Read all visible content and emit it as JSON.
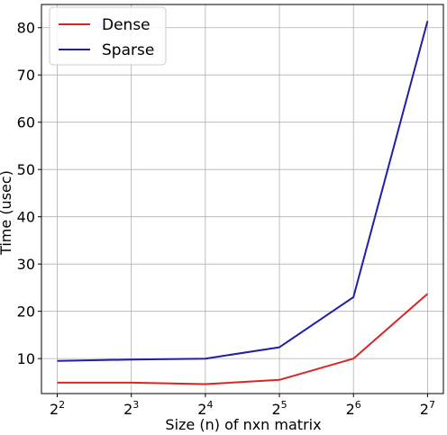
{
  "chart_data": {
    "type": "line",
    "xlabel": "Size (n) of nxn matrix",
    "ylabel": "Time (usec)",
    "x_scale": "log2",
    "x": [
      4,
      8,
      16,
      32,
      64,
      128
    ],
    "x_tick_bases": [
      "2",
      "2",
      "2",
      "2",
      "2",
      "2"
    ],
    "x_tick_exponents": [
      "2",
      "3",
      "4",
      "5",
      "6",
      "7"
    ],
    "y_ticks": [
      "10",
      "20",
      "30",
      "40",
      "50",
      "60",
      "70",
      "80"
    ],
    "y_tick_values": [
      10,
      20,
      30,
      40,
      50,
      60,
      70,
      80
    ],
    "ylim": [
      2.6,
      84.9
    ],
    "xlim": [
      3.45,
      148.5
    ],
    "grid": true,
    "legend_position": "top-left",
    "series": [
      {
        "name": "Dense",
        "color": "#d62728",
        "values": [
          4.9,
          4.9,
          4.6,
          5.5,
          10.0,
          23.7
        ]
      },
      {
        "name": "Sparse",
        "color": "#1f1fa8",
        "values": [
          9.5,
          9.8,
          10.0,
          12.4,
          23.0,
          81.4
        ]
      }
    ]
  }
}
